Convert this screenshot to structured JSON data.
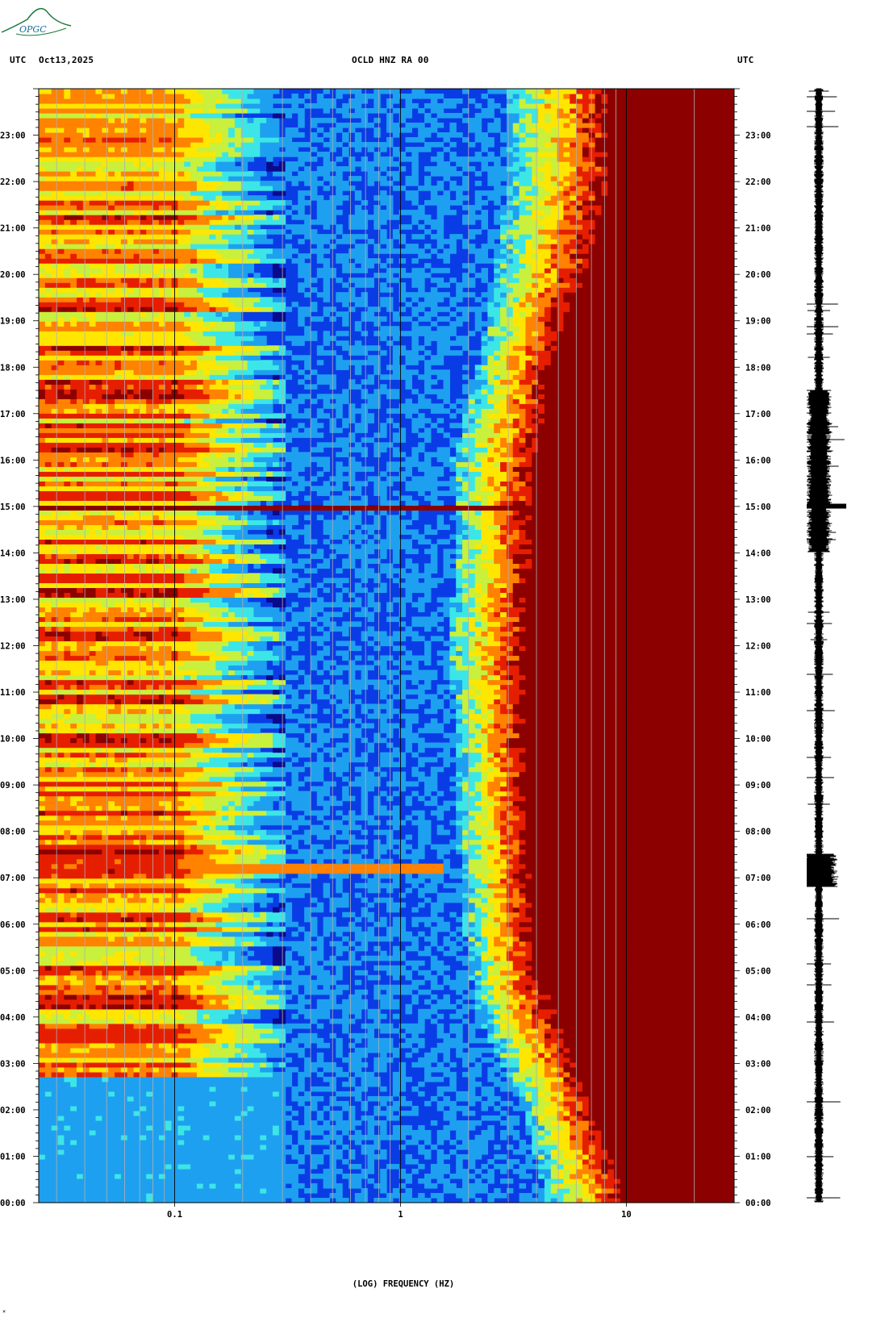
{
  "logo": {
    "text": "OPGC",
    "icon": "opgc-logo-icon",
    "color": "#1a7a3a"
  },
  "header": {
    "left_tz": "UTC",
    "date": "Oct13,2025",
    "station": "OCLD HNZ RA 00",
    "right_tz": "UTC"
  },
  "footer_mark": "×",
  "chart_data": {
    "type": "heatmap",
    "title": "OCLD HNZ RA 00",
    "xlabel": "(LOG) FREQUENCY (HZ)",
    "x_scale": "log",
    "xlim": [
      0.025,
      30
    ],
    "x_ticks": [
      {
        "value": 0.1,
        "label": "0.1"
      },
      {
        "value": 1,
        "label": "1"
      },
      {
        "value": 10,
        "label": "10"
      }
    ],
    "y_unit": "UTC hour",
    "ylim": [
      0,
      24
    ],
    "y_ticks": [
      {
        "value": 0,
        "label": "00:00"
      },
      {
        "value": 1,
        "label": "01:00"
      },
      {
        "value": 2,
        "label": "02:00"
      },
      {
        "value": 3,
        "label": "03:00"
      },
      {
        "value": 4,
        "label": "04:00"
      },
      {
        "value": 5,
        "label": "05:00"
      },
      {
        "value": 6,
        "label": "06:00"
      },
      {
        "value": 7,
        "label": "07:00"
      },
      {
        "value": 8,
        "label": "08:00"
      },
      {
        "value": 9,
        "label": "09:00"
      },
      {
        "value": 10,
        "label": "10:00"
      },
      {
        "value": 11,
        "label": "11:00"
      },
      {
        "value": 12,
        "label": "12:00"
      },
      {
        "value": 13,
        "label": "13:00"
      },
      {
        "value": 14,
        "label": "14:00"
      },
      {
        "value": 15,
        "label": "15:00"
      },
      {
        "value": 16,
        "label": "16:00"
      },
      {
        "value": 17,
        "label": "17:00"
      },
      {
        "value": 18,
        "label": "18:00"
      },
      {
        "value": 19,
        "label": "19:00"
      },
      {
        "value": 20,
        "label": "20:00"
      },
      {
        "value": 21,
        "label": "21:00"
      },
      {
        "value": 22,
        "label": "22:00"
      },
      {
        "value": 23,
        "label": "23:00"
      }
    ],
    "colormap": [
      "#0a0a8c",
      "#0a3ce6",
      "#1ea0f0",
      "#3ce6e6",
      "#c8f03c",
      "#ffe600",
      "#ff8200",
      "#e61e00",
      "#8c0000"
    ],
    "grid": "vertical decade lines",
    "microseism_band": {
      "x_range": [
        0.025,
        0.3
      ],
      "y_range": [
        2.7,
        24
      ],
      "level": 0.75
    },
    "noise_floor_edge_hz": [
      {
        "hour": 0,
        "freq": 4.5
      },
      {
        "hour": 2,
        "freq": 3.5
      },
      {
        "hour": 4,
        "freq": 2.2
      },
      {
        "hour": 6,
        "freq": 1.9
      },
      {
        "hour": 8,
        "freq": 1.8
      },
      {
        "hour": 10,
        "freq": 1.8
      },
      {
        "hour": 12,
        "freq": 1.6
      },
      {
        "hour": 14,
        "freq": 1.8
      },
      {
        "hour": 16,
        "freq": 1.7
      },
      {
        "hour": 18,
        "freq": 2.2
      },
      {
        "hour": 20,
        "freq": 2.6
      },
      {
        "hour": 22,
        "freq": 3.0
      },
      {
        "hour": 24,
        "freq": 3.0
      }
    ],
    "saturation_edge_hz": [
      {
        "hour": 0,
        "freq": 10
      },
      {
        "hour": 3,
        "freq": 6
      },
      {
        "hour": 5,
        "freq": 4
      },
      {
        "hour": 10,
        "freq": 3.5
      },
      {
        "hour": 15,
        "freq": 3.8
      },
      {
        "hour": 18,
        "freq": 4.5
      },
      {
        "hour": 20,
        "freq": 6.5
      },
      {
        "hour": 22,
        "freq": 8.5
      },
      {
        "hour": 24,
        "freq": 8.5
      }
    ],
    "events": [
      {
        "hour": 15.0,
        "max_freq": 4,
        "level": 1.0
      },
      {
        "hour": 7.2,
        "max_freq": 1.5,
        "level": 0.7
      }
    ]
  }
}
